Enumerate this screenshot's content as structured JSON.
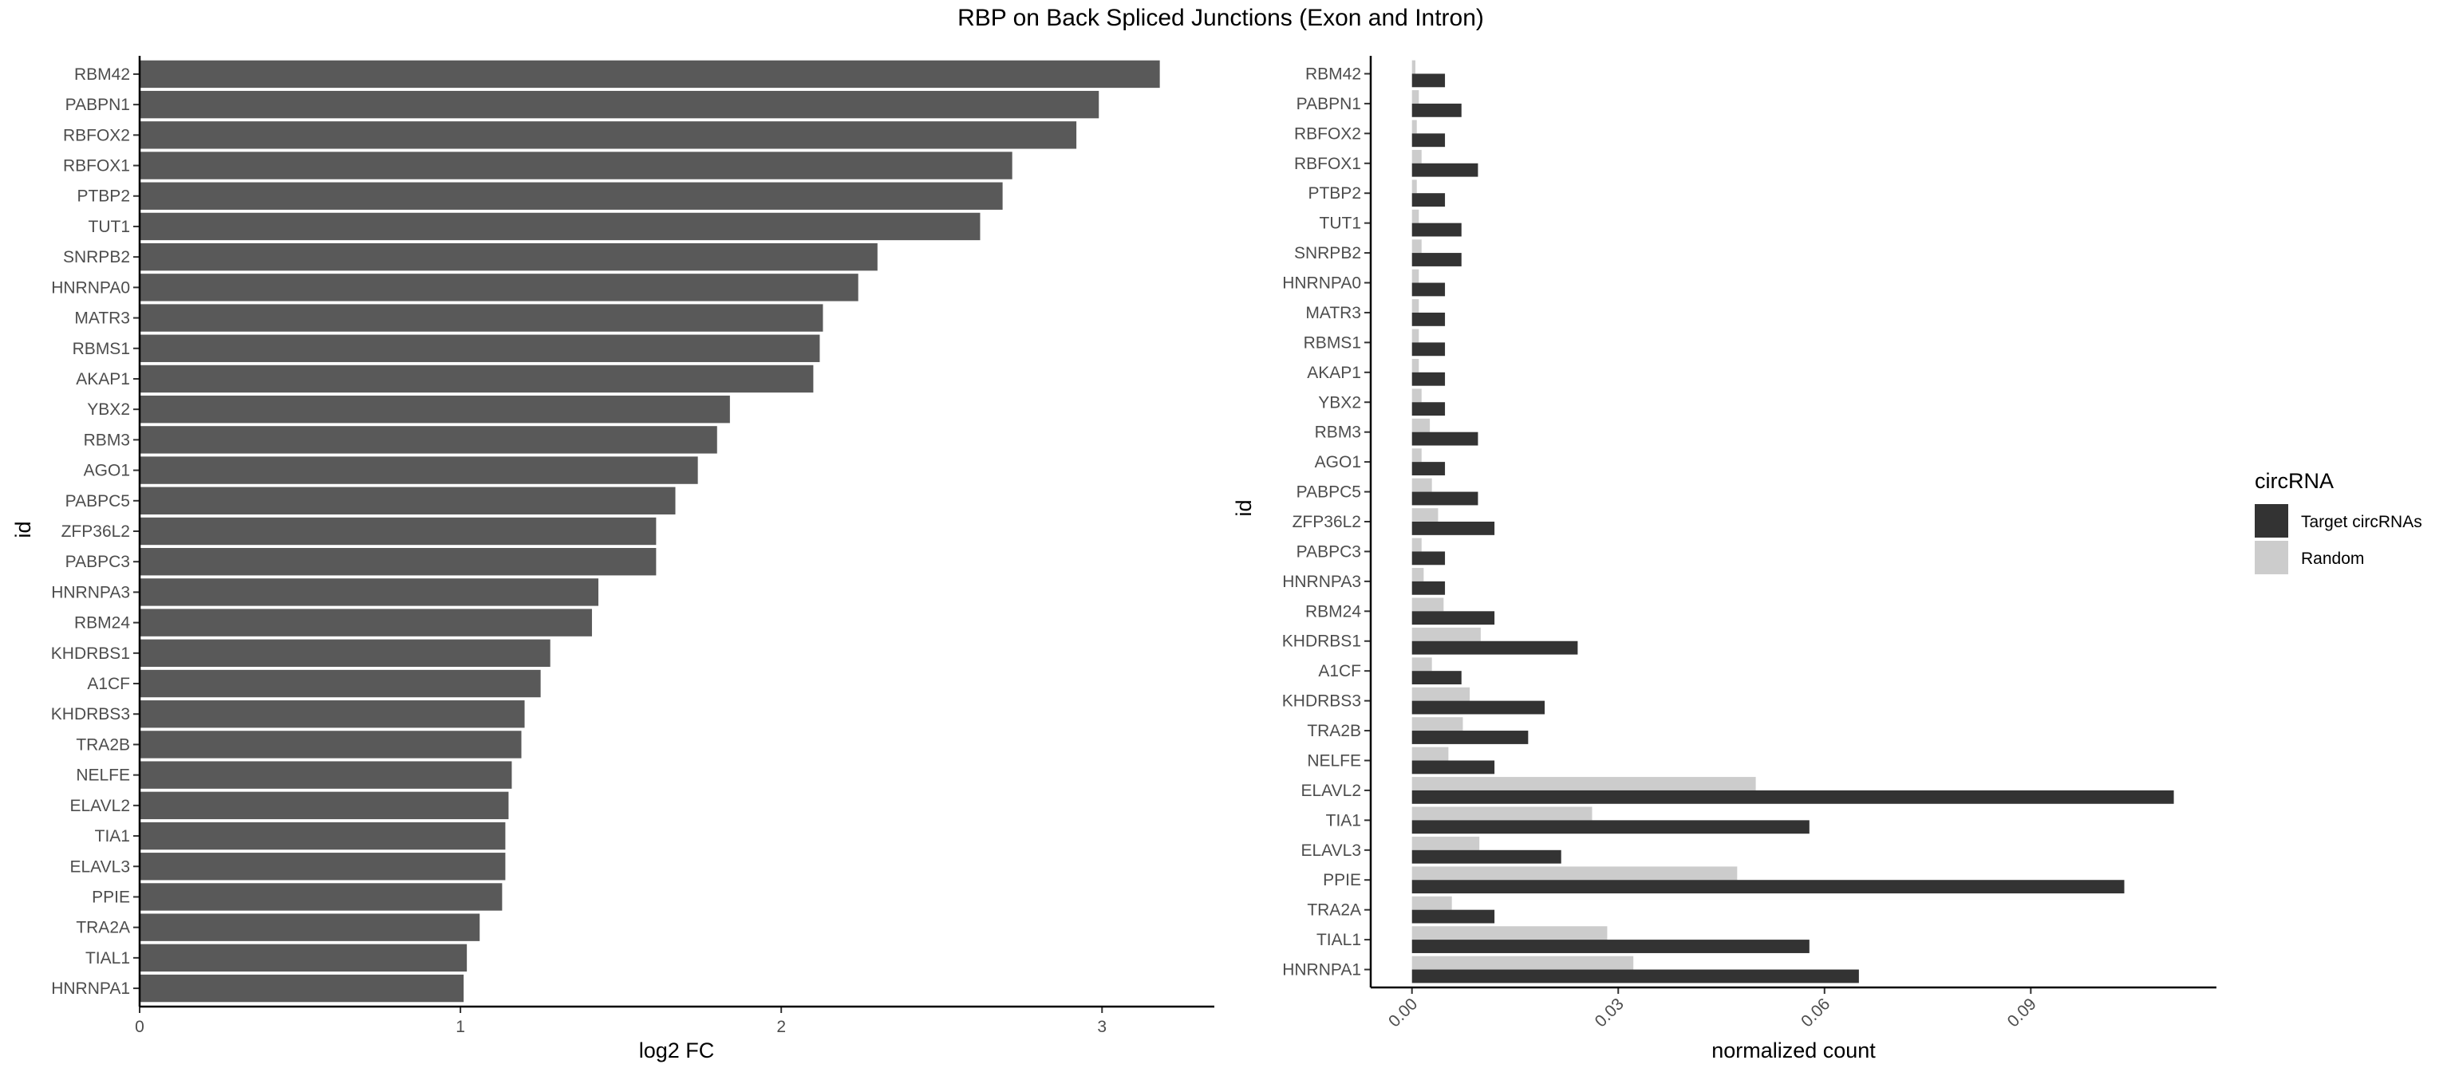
{
  "title": "RBP on Back Spliced Junctions (Exon and Intron)",
  "chart_data": [
    {
      "type": "bar",
      "orientation": "horizontal",
      "ylabel": "id",
      "xlabel": "log2 FC",
      "xlim": [
        0,
        3.35
      ],
      "xticks": [
        "0",
        "1",
        "2",
        "3"
      ],
      "bar_color": "#595959",
      "categories": [
        "RBM42",
        "PABPN1",
        "RBFOX2",
        "RBFOX1",
        "PTBP2",
        "TUT1",
        "SNRPB2",
        "HNRNPA0",
        "MATR3",
        "RBMS1",
        "AKAP1",
        "YBX2",
        "RBM3",
        "AGO1",
        "PABPC5",
        "ZFP36L2",
        "PABPC3",
        "HNRNPA3",
        "RBM24",
        "KHDRBS1",
        "A1CF",
        "KHDRBS3",
        "TRA2B",
        "NELFE",
        "ELAVL2",
        "TIA1",
        "ELAVL3",
        "PPIE",
        "TRA2A",
        "TIAL1",
        "HNRNPA1"
      ],
      "values": [
        3.18,
        2.99,
        2.92,
        2.72,
        2.69,
        2.62,
        2.3,
        2.24,
        2.13,
        2.12,
        2.1,
        1.84,
        1.8,
        1.74,
        1.67,
        1.61,
        1.61,
        1.43,
        1.41,
        1.28,
        1.25,
        1.2,
        1.19,
        1.16,
        1.15,
        1.14,
        1.14,
        1.13,
        1.06,
        1.02,
        1.01
      ]
    },
    {
      "type": "bar",
      "orientation": "horizontal",
      "grouped": true,
      "ylabel": "id",
      "xlabel": "normalized count",
      "xlim": [
        -0.006,
        0.117
      ],
      "xticks": [
        "0.00",
        "0.03",
        "0.06",
        "0.09"
      ],
      "categories": [
        "RBM42",
        "PABPN1",
        "RBFOX2",
        "RBFOX1",
        "PTBP2",
        "TUT1",
        "SNRPB2",
        "HNRNPA0",
        "MATR3",
        "RBMS1",
        "AKAP1",
        "YBX2",
        "RBM3",
        "AGO1",
        "PABPC5",
        "ZFP36L2",
        "PABPC3",
        "HNRNPA3",
        "RBM24",
        "KHDRBS1",
        "A1CF",
        "KHDRBS3",
        "TRA2B",
        "NELFE",
        "ELAVL2",
        "TIA1",
        "ELAVL3",
        "PPIE",
        "TRA2A",
        "TIAL1",
        "HNRNPA1"
      ],
      "legend": {
        "title": "circRNA",
        "position": "right"
      },
      "series": [
        {
          "name": "Target circRNAs",
          "color": "#333333",
          "values": [
            0.0048,
            0.0072,
            0.0048,
            0.0096,
            0.0048,
            0.0072,
            0.0072,
            0.0048,
            0.0048,
            0.0048,
            0.0048,
            0.0048,
            0.0096,
            0.0048,
            0.0096,
            0.012,
            0.0048,
            0.0048,
            0.012,
            0.0241,
            0.0072,
            0.0193,
            0.0169,
            0.012,
            0.1108,
            0.0578,
            0.0217,
            0.1036,
            0.012,
            0.0578,
            0.065
          ]
        },
        {
          "name": "Random",
          "color": "#cccccc",
          "values": [
            0.0005,
            0.001,
            0.0007,
            0.0014,
            0.0007,
            0.001,
            0.0014,
            0.001,
            0.001,
            0.001,
            0.001,
            0.0014,
            0.0026,
            0.0014,
            0.0029,
            0.0038,
            0.0014,
            0.0017,
            0.0046,
            0.01,
            0.0029,
            0.0084,
            0.0074,
            0.0053,
            0.05,
            0.0262,
            0.0098,
            0.0473,
            0.0058,
            0.0284,
            0.0322
          ]
        }
      ]
    }
  ]
}
